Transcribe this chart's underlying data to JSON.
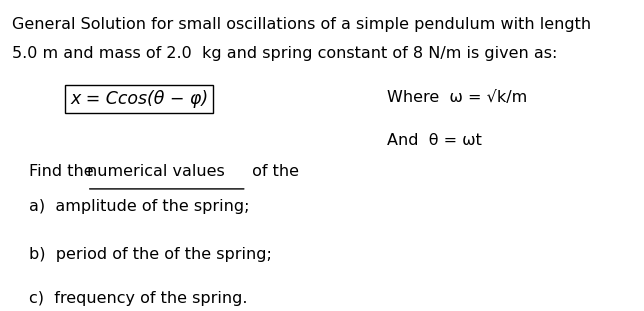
{
  "background_color": "#ffffff",
  "title_line1": "General Solution for small oscillations of a simple pendulum with length",
  "title_line2": "5.0 m and mass of 2.0  kg and spring constant of 8 N/m is given as:",
  "equation": "x = Ccos(θ − φ)",
  "where_line1": "Where  ω = √k/m",
  "where_line2": "And  θ = ωt",
  "find_text_plain": "Find the ",
  "find_text_underline": "numerical values",
  "find_text_end": " of the",
  "item_a": "a)  amplitude of the spring;",
  "item_b": "b)  period of the of the spring;",
  "item_c": "c)  frequency of the spring.",
  "fontsize_title": 11.5,
  "fontsize_body": 11.5,
  "text_color": "#000000"
}
